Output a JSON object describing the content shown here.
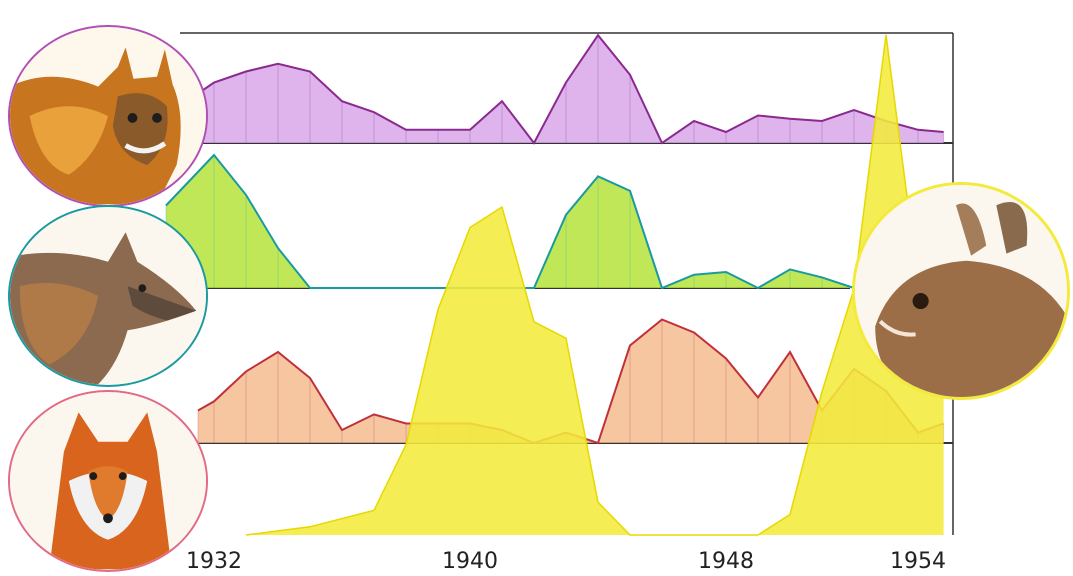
{
  "chart_data": {
    "type": "area",
    "title": "",
    "xlabel": "",
    "ylabel": "",
    "xlim": [
      1931.4,
      1954.8
    ],
    "x_ticks": [
      1932,
      1940,
      1948,
      1954
    ],
    "x_tick_labels": [
      "1932",
      "1940",
      "1948",
      "1954"
    ],
    "grid": false,
    "legend": "none",
    "series": [
      {
        "key": "lynx",
        "color": "#d9a6e8",
        "line": "#8a2a8f",
        "x": [
          1931.5,
          1932,
          1933,
          1934,
          1935,
          1936,
          1937,
          1938,
          1939,
          1940,
          1941,
          1942,
          1943,
          1944,
          1945,
          1946,
          1947,
          1948,
          1949,
          1950,
          1951,
          1952,
          1953,
          1954,
          1954.8
        ],
        "values": [
          45,
          55,
          65,
          72,
          65,
          38,
          28,
          12,
          12,
          12,
          38,
          0,
          55,
          98,
          62,
          0,
          20,
          10,
          25,
          22,
          20,
          30,
          20,
          12,
          10
        ]
      },
      {
        "key": "wolf",
        "color": "#b5e33b",
        "line": "#1a9aa0",
        "x": [
          1930.5,
          1932,
          1933,
          1934,
          1935,
          1936,
          1937,
          1938,
          1939,
          1940,
          1941,
          1942,
          1943,
          1944,
          1945,
          1946,
          1947,
          1948,
          1949,
          1950,
          1951,
          1952
        ],
        "values": [
          62,
          100,
          70,
          30,
          0,
          0,
          0,
          0,
          0,
          0,
          0,
          0,
          55,
          84,
          73,
          0,
          10,
          12,
          0,
          14,
          8,
          0
        ]
      },
      {
        "key": "red_fox",
        "color": "#f2b888",
        "line": "#c0303a",
        "x": [
          1931.5,
          1932,
          1933,
          1934,
          1935,
          1936,
          1937,
          1938,
          1939,
          1940,
          1941,
          1942,
          1943,
          1944,
          1945,
          1946,
          1947,
          1948,
          1949,
          1950,
          1951,
          1952,
          1953,
          1954,
          1954.8
        ],
        "values": [
          25,
          32,
          55,
          70,
          50,
          10,
          22,
          15,
          15,
          15,
          10,
          0,
          8,
          0,
          75,
          95,
          85,
          65,
          35,
          70,
          25,
          57,
          40,
          8,
          15
        ]
      },
      {
        "key": "hare",
        "color": "#f3ea3c",
        "line": "#e7d800",
        "x": [
          1933,
          1935,
          1937,
          1938,
          1939,
          1940,
          1941,
          1942,
          1943,
          1944,
          1945,
          1946,
          1948,
          1949,
          1950,
          1951,
          1952,
          1953,
          1954,
          1954.8
        ],
        "values": [
          0,
          2,
          6,
          22,
          55,
          75,
          80,
          52,
          48,
          8,
          0,
          0,
          0,
          0,
          5,
          35,
          60,
          122,
          62,
          40
        ]
      }
    ]
  }
}
